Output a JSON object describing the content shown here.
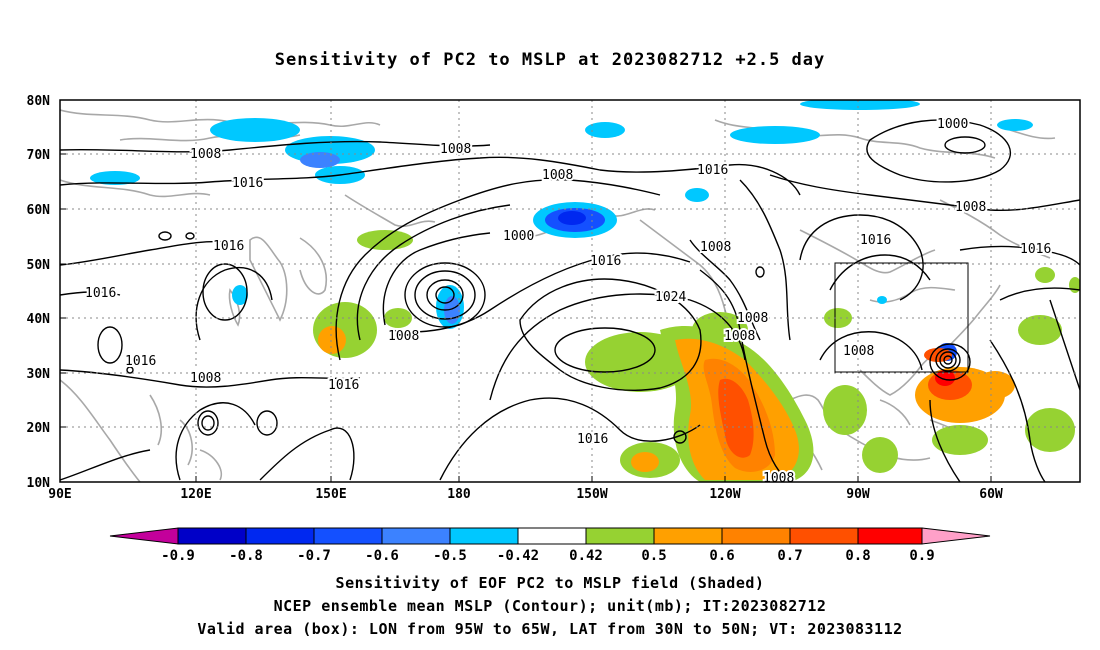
{
  "title": "Sensitivity of PC2 to MSLP at 2023082712 +2.5 day",
  "map": {
    "lat_labels": [
      "80N",
      "70N",
      "60N",
      "50N",
      "40N",
      "30N",
      "20N",
      "10N"
    ],
    "lon_labels": [
      "90E",
      "120E",
      "150E",
      "180",
      "150W",
      "120W",
      "90W",
      "60W"
    ],
    "contour_labels": [
      "1008",
      "1008",
      "1016",
      "1008",
      "1016",
      "1016",
      "1016",
      "1000",
      "1016",
      "1008",
      "1024",
      "1008",
      "1008",
      "1016",
      "1008",
      "1016",
      "1008",
      "1016",
      "1000",
      "1008",
      "1016",
      "1008",
      "1016",
      "1008"
    ],
    "valid_box": {
      "lon_from": "95W",
      "lon_to": "65W",
      "lat_from": "30N",
      "lat_to": "50N"
    }
  },
  "colorbar": {
    "labels": [
      "-0.9",
      "-0.8",
      "-0.7",
      "-0.6",
      "-0.5",
      "-0.42",
      "0.42",
      "0.5",
      "0.6",
      "0.7",
      "0.8",
      "0.9"
    ],
    "colors": [
      "#c3009b",
      "#0000c8",
      "#0028f0",
      "#1450ff",
      "#3c82ff",
      "#00c8ff",
      "#ffffff",
      "#96d232",
      "#ffa000",
      "#ff8200",
      "#ff5000",
      "#ff0000",
      "#ffa0c8"
    ]
  },
  "captions": {
    "line1": "Sensitivity of EOF PC2 to MSLP field (Shaded)",
    "line2": "NCEP ensemble mean MSLP (Contour); unit(mb); IT:2023082712",
    "line3": "Valid area (box): LON from 95W to 65W, LAT from 30N to 50N; VT: 2023083112"
  }
}
